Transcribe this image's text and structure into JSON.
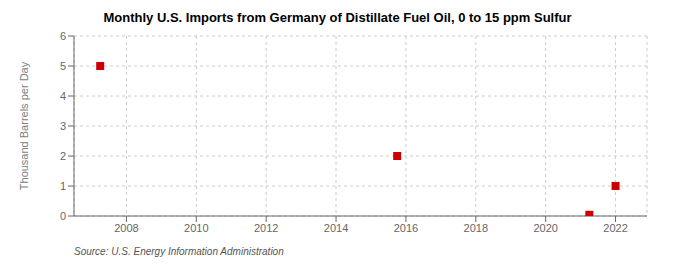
{
  "chart_data": {
    "type": "scatter",
    "title": "Monthly U.S. Imports from Germany of Distillate Fuel Oil, 0 to 15 ppm Sulfur",
    "ylabel": "Thousand Barrels per Day",
    "annotations": [
      "Source: U.S. Energy Information Administration"
    ],
    "x": [
      2007.25,
      2015.75,
      2021.25,
      2022.0
    ],
    "values": [
      5.0,
      2.0,
      0.04,
      1.0
    ],
    "color": "#cc0000",
    "marker": "square",
    "xlim": [
      2006.5,
      2022.9
    ],
    "xticks": [
      2008,
      2010,
      2012,
      2014,
      2016,
      2018,
      2020,
      2022
    ],
    "ylim": [
      0,
      6
    ],
    "yticks": [
      0,
      1,
      2,
      3,
      4,
      5,
      6
    ],
    "grid": true
  }
}
